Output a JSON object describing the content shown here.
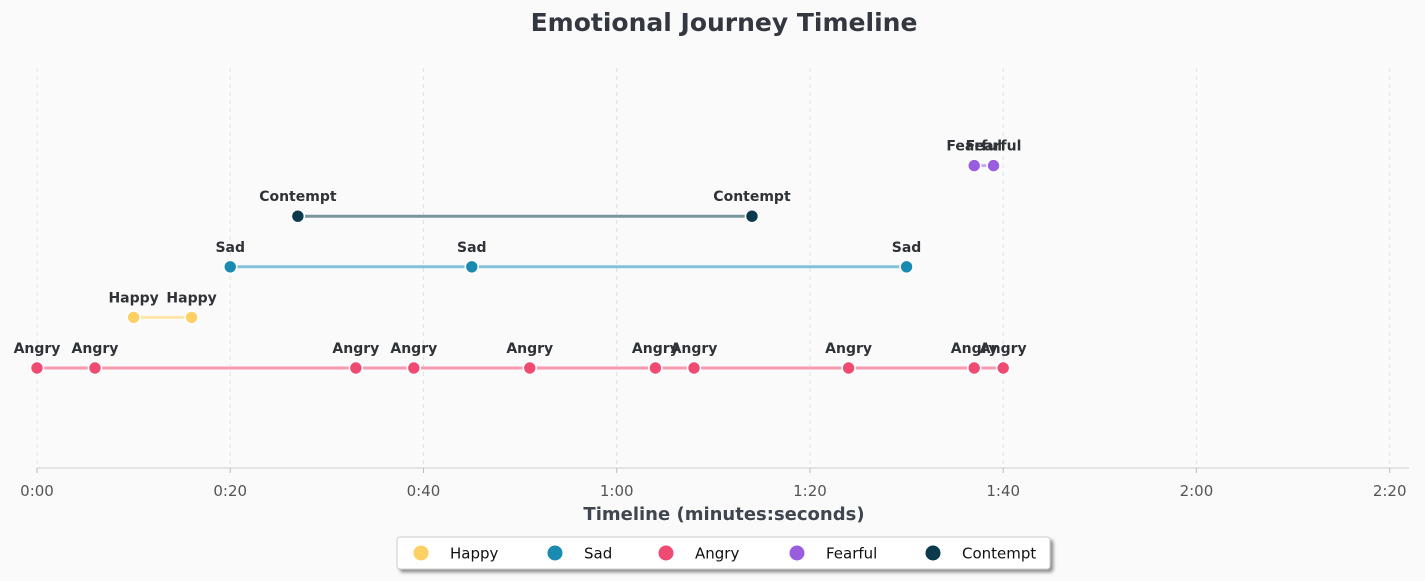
{
  "chart_data": {
    "type": "scatter",
    "title": "Emotional Journey Timeline",
    "xlabel": "Timeline (minutes:seconds)",
    "xlim": [
      0,
      142
    ],
    "x_ticks": [
      {
        "value": 0,
        "label": "0:00"
      },
      {
        "value": 20,
        "label": "0:20"
      },
      {
        "value": 40,
        "label": "0:40"
      },
      {
        "value": 60,
        "label": "1:00"
      },
      {
        "value": 80,
        "label": "1:20"
      },
      {
        "value": 100,
        "label": "1:40"
      },
      {
        "value": 120,
        "label": "2:00"
      },
      {
        "value": 140,
        "label": "2:20"
      }
    ],
    "grid": "vertical dashed",
    "legend_position": "bottom-center",
    "series": [
      {
        "name": "Happy",
        "level": 2,
        "color": "#fdd065",
        "line_color": "#fde6a8",
        "x": [
          10,
          16
        ]
      },
      {
        "name": "Sad",
        "level": 3,
        "color": "#1a8bb0",
        "line_color": "#84c0d9",
        "x": [
          20,
          45,
          90
        ]
      },
      {
        "name": "Angry",
        "level": 1,
        "color": "#ee4a72",
        "line_color": "#f69bb0",
        "x": [
          0,
          6,
          33,
          39,
          51,
          64,
          68,
          84,
          97,
          100
        ]
      },
      {
        "name": "Fearful",
        "level": 5,
        "color": "#9b5de0",
        "line_color": "#c9a9ee",
        "x": [
          97,
          99
        ]
      },
      {
        "name": "Contempt",
        "level": 4,
        "color": "#0b3a4f",
        "line_color": "#7b959f",
        "x": [
          27,
          74
        ]
      }
    ]
  }
}
